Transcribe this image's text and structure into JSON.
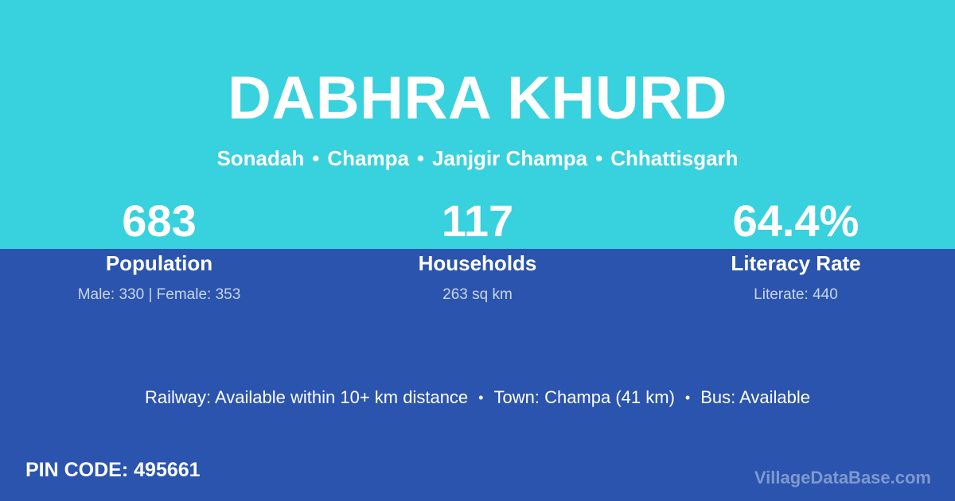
{
  "colors": {
    "hero_background": "#38d1de",
    "body_background": "#2a54ae",
    "text_primary": "#ffffff",
    "text_muted": "rgba(255,255,255,0.75)",
    "watermark": "rgba(255,255,255,0.40)"
  },
  "header": {
    "title": "DABHRA KHURD",
    "breadcrumb": {
      "separator": "•",
      "segments": [
        "Sonadah",
        "Champa",
        "Janjgir Champa",
        "Chhattisgarh"
      ]
    }
  },
  "stats": [
    {
      "value": "683",
      "label": "Population",
      "detail": "Male: 330 | Female: 353"
    },
    {
      "value": "117",
      "label": "Households",
      "detail": "263 sq km"
    },
    {
      "value": "64.4%",
      "label": "Literacy Rate",
      "detail": "Literate: 440"
    }
  ],
  "transport": {
    "separator": "•",
    "items": [
      "Railway: Available within 10+ km distance",
      "Town: Champa (41 km)",
      "Bus: Available"
    ]
  },
  "footer": {
    "pin_label": "PIN CODE:",
    "pin_value": "495661",
    "watermark": "VillageDataBase.com"
  }
}
